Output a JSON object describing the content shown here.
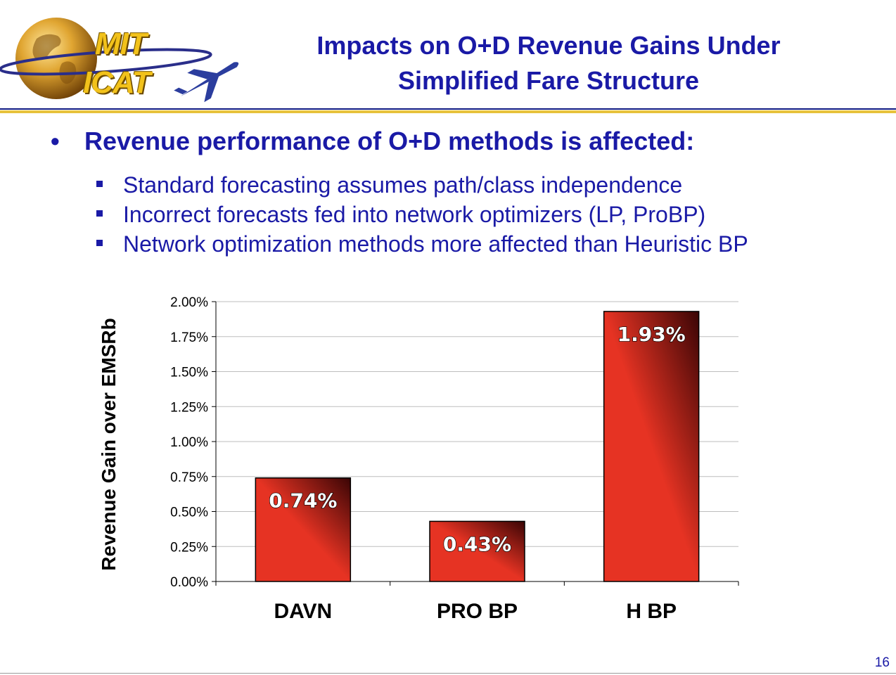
{
  "logo": {
    "line1": "MIT",
    "line2": "ICAT"
  },
  "slide_title": {
    "line1": "Impacts on O+D Revenue Gains Under",
    "line2": "Simplified Fare Structure"
  },
  "main_bullet": "Revenue performance of O+D methods is affected:",
  "sub_bullets": [
    "Standard forecasting assumes path/class independence",
    "Incorrect forecasts fed into network optimizers (LP, ProBP)",
    "Network optimization methods more affected than Heuristic BP"
  ],
  "page_number": "16",
  "colors": {
    "title_blue": "#1a1aa6",
    "bar_red": "#e63323",
    "bar_dark": "#3a0505",
    "logo_gold": "#f2c21b",
    "rule_gold": "#e7c23b"
  },
  "chart_data": {
    "type": "bar",
    "title": "",
    "xlabel": "",
    "ylabel": "Revenue Gain over EMSRb",
    "categories": [
      "DAVN",
      "PRO BP",
      "H BP"
    ],
    "values": [
      0.74,
      0.43,
      1.93
    ],
    "data_labels": [
      "0.74%",
      "0.43%",
      "1.93%"
    ],
    "ylim": [
      0,
      2.0
    ],
    "y_ticks": [
      "0.00%",
      "0.25%",
      "0.50%",
      "0.75%",
      "1.00%",
      "1.25%",
      "1.50%",
      "1.75%",
      "2.00%"
    ],
    "y_tick_values": [
      0,
      0.25,
      0.5,
      0.75,
      1.0,
      1.25,
      1.5,
      1.75,
      2.0
    ],
    "grid": true,
    "legend": "none"
  }
}
